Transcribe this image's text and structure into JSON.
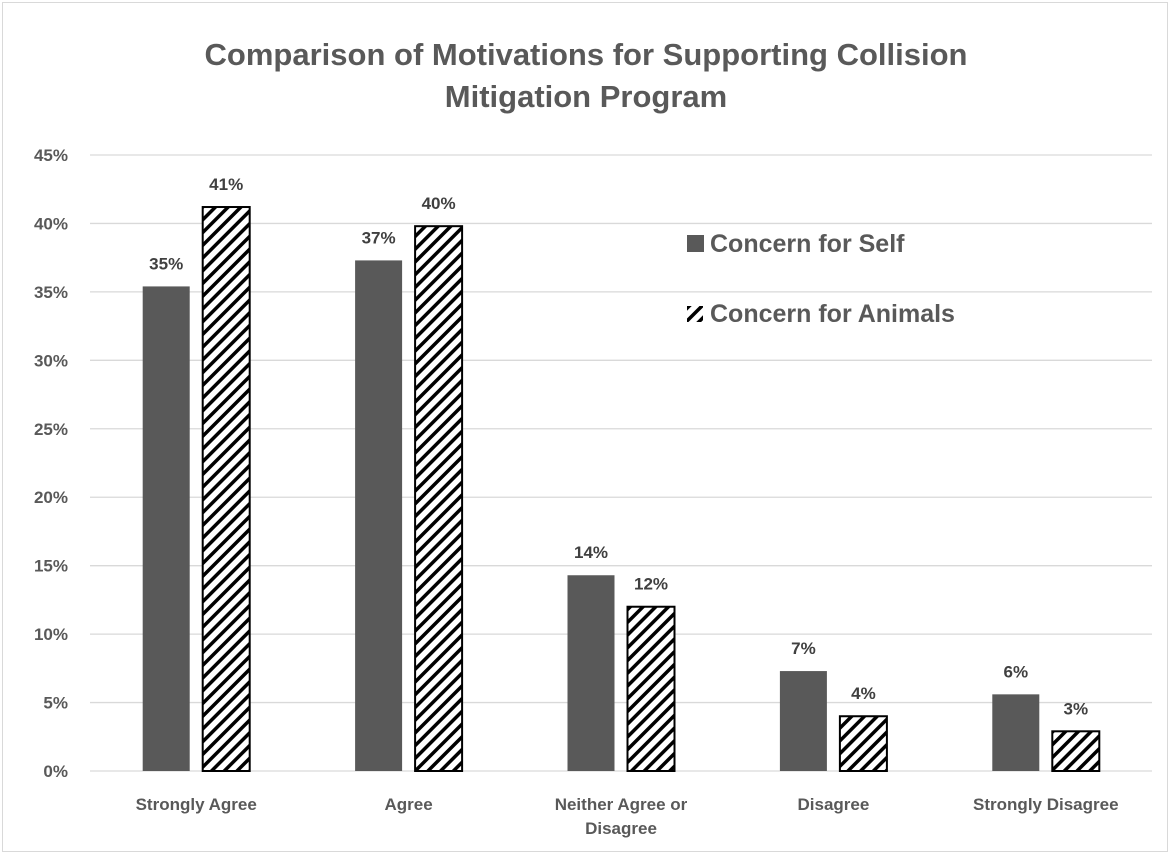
{
  "chart_data": {
    "type": "bar",
    "title": "Comparison of Motivations for Supporting Collision Mitigation Program",
    "title_lines": [
      "Comparison of Motivations for Supporting Collision",
      "Mitigation Program"
    ],
    "categories": [
      "Strongly Agree",
      "Agree",
      "Neither Agree or Disagree",
      "Disagree",
      "Strongly Disagree"
    ],
    "category_lines": [
      [
        "Strongly Agree"
      ],
      [
        "Agree"
      ],
      [
        "Neither Agree or",
        "Disagree"
      ],
      [
        "Disagree"
      ],
      [
        "Strongly Disagree"
      ]
    ],
    "series": [
      {
        "name": "Concern for Self",
        "fill": "solid",
        "color": "#595959",
        "values": [
          35.4,
          37.3,
          14.3,
          7.3,
          5.6
        ],
        "labels": [
          "35%",
          "37%",
          "14%",
          "7%",
          "6%"
        ]
      },
      {
        "name": "Concern for Animals",
        "fill": "diagonal-hatch",
        "color": "#000000",
        "values": [
          41.2,
          39.8,
          12.0,
          4.0,
          2.9
        ],
        "labels": [
          "41%",
          "40%",
          "12%",
          "4%",
          "3%"
        ]
      }
    ],
    "yticks": [
      "0%",
      "5%",
      "10%",
      "15%",
      "20%",
      "25%",
      "30%",
      "35%",
      "40%",
      "45%"
    ],
    "ylim": [
      0,
      45
    ],
    "xlabel": "",
    "ylabel": "",
    "grid": true,
    "legend_position": "top-right",
    "colors": {
      "gridline": "#d9d9d9",
      "text": "#595959",
      "label": "#404040"
    }
  }
}
